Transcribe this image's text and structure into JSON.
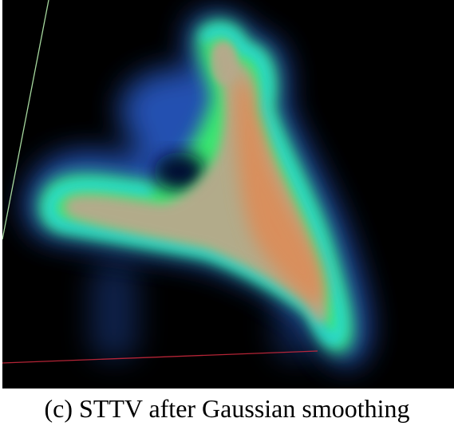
{
  "figure": {
    "caption": "(c)  STTV after Gaussian smoothing"
  },
  "colors": {
    "background": "#000000",
    "axis_green": "#b8f0b0",
    "axis_red": "#c8283c",
    "glow_blue": "#2a5fd0",
    "glow_cyan": "#28d8e8",
    "glow_green": "#38e870",
    "core_tan": "#b9a88c",
    "core_orange": "#e08a55"
  }
}
